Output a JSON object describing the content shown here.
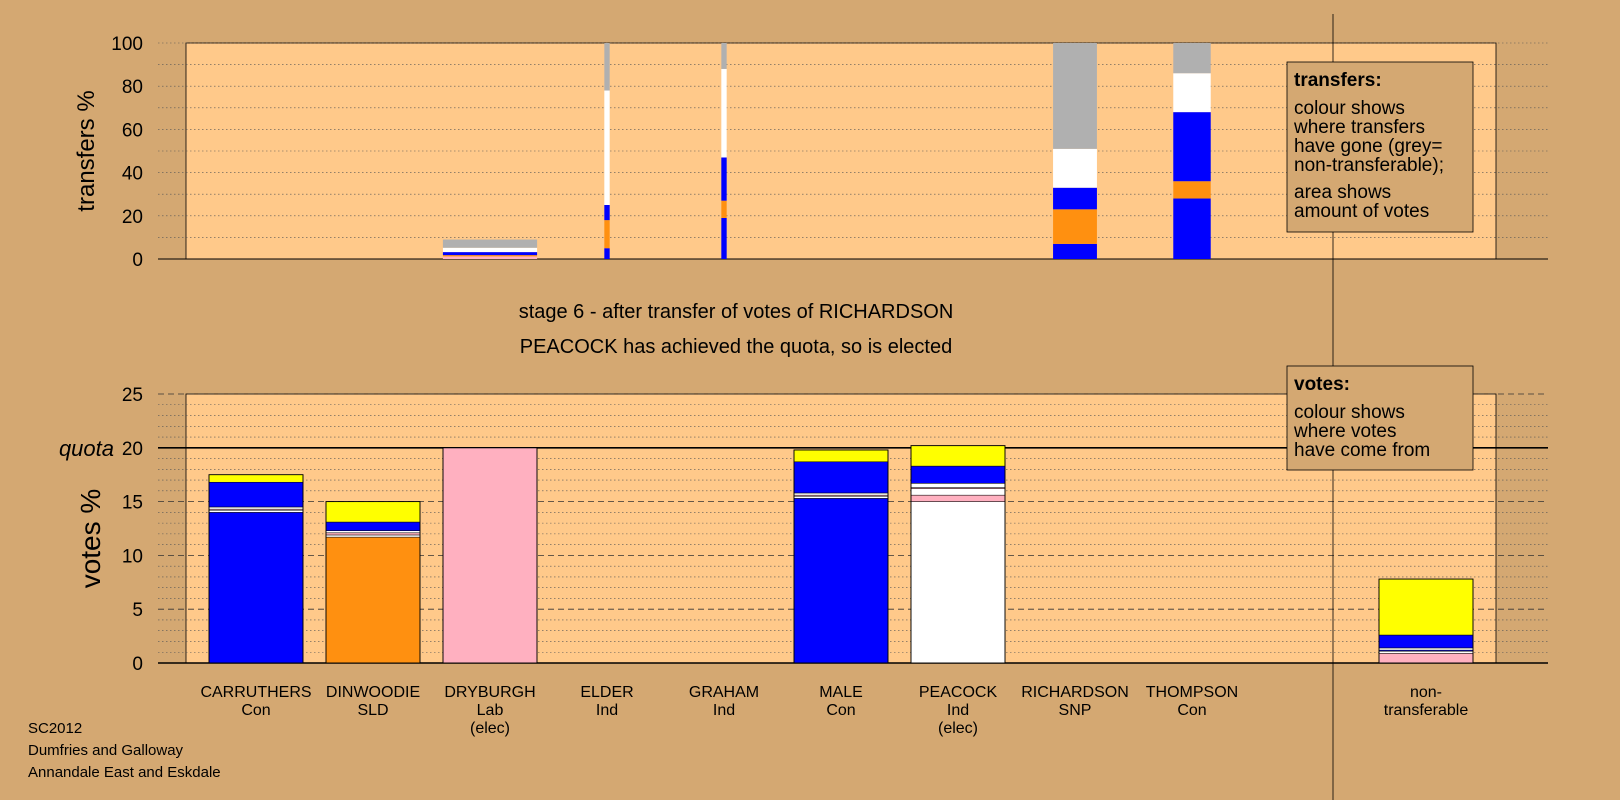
{
  "footer": {
    "line1": "SC2012",
    "line2": "Dumfries and Galloway",
    "line3": "Annandale East and Eskdale"
  },
  "colors": {
    "background": "#d4a872",
    "plot_area": "#ffc98a",
    "Con": "#0000ff",
    "SLD": "#ff9010",
    "Lab": "#ffb0c0",
    "Ind": "#ffffff",
    "SNP": "#ffff00",
    "non_transferable": "#b0b0b0"
  },
  "chart_data": [
    {
      "type": "bar",
      "stacked": true,
      "ylabel": "transfers %",
      "ylim": [
        0,
        100
      ],
      "yticks": [
        0,
        20,
        40,
        60,
        80,
        100
      ],
      "grid": true,
      "legend": {
        "title": "transfers:",
        "lines1": [
          "colour shows",
          "where transfers",
          "have gone (grey=",
          "non-transferable);"
        ],
        "lines2": [
          "area shows",
          "amount of votes"
        ],
        "placement": "top-right"
      },
      "bars": [
        {
          "candidate": "DRYBURGH",
          "width_votes": 0.88,
          "segments": [
            {
              "color": "Lab",
              "value": 1.2
            },
            {
              "color": "SLD",
              "value": 0.6
            },
            {
              "color": "Con",
              "value": 1.4
            },
            {
              "color": "Ind",
              "value": 2.0
            },
            {
              "color": "non_transferable",
              "value": 3.8
            }
          ]
        },
        {
          "candidate": "ELDER",
          "width_votes": 0.05,
          "segments": [
            {
              "color": "Con",
              "value": 5
            },
            {
              "color": "SLD",
              "value": 13
            },
            {
              "color": "Con",
              "value": 7
            },
            {
              "color": "Ind",
              "value": 53
            },
            {
              "color": "non_transferable",
              "value": 22
            }
          ]
        },
        {
          "candidate": "GRAHAM",
          "width_votes": 0.05,
          "segments": [
            {
              "color": "Con",
              "value": 19
            },
            {
              "color": "SLD",
              "value": 8
            },
            {
              "color": "Con",
              "value": 20
            },
            {
              "color": "Ind",
              "value": 41
            },
            {
              "color": "non_transferable",
              "value": 12
            }
          ]
        },
        {
          "candidate": "RICHARDSON",
          "width_votes": 0.41,
          "segments": [
            {
              "color": "Con",
              "value": 7
            },
            {
              "color": "SLD",
              "value": 16
            },
            {
              "color": "Con",
              "value": 10
            },
            {
              "color": "Ind",
              "value": 18
            },
            {
              "color": "non_transferable",
              "value": 49
            }
          ]
        },
        {
          "candidate": "THOMPSON",
          "width_votes": 0.35,
          "segments": [
            {
              "color": "Con",
              "value": 28
            },
            {
              "color": "SLD",
              "value": 8
            },
            {
              "color": "Con",
              "value": 32
            },
            {
              "color": "Ind",
              "value": 18
            },
            {
              "color": "non_transferable",
              "value": 14
            }
          ]
        }
      ]
    },
    {
      "type": "bar",
      "stacked": true,
      "ylabel": "votes %",
      "ylim": [
        0,
        25
      ],
      "yticks": [
        0,
        5,
        10,
        15,
        20,
        25
      ],
      "quota": 20,
      "quota_label": "quota",
      "grid": true,
      "legend": {
        "title": "votes:",
        "lines": [
          "colour shows",
          "where votes",
          "have come from"
        ],
        "placement": "top-right"
      },
      "stage_title": "stage 6 - after transfer of votes of RICHARDSON",
      "stage_subtitle": "PEACOCK has achieved the quota, so is elected",
      "categories": [
        {
          "name": "CARRUTHERS",
          "party": "Con",
          "note": ""
        },
        {
          "name": "DINWOODIE",
          "party": "SLD",
          "note": ""
        },
        {
          "name": "DRYBURGH",
          "party": "Lab",
          "note": "(elec)"
        },
        {
          "name": "ELDER",
          "party": "Ind",
          "note": ""
        },
        {
          "name": "GRAHAM",
          "party": "Ind",
          "note": ""
        },
        {
          "name": "MALE",
          "party": "Con",
          "note": ""
        },
        {
          "name": "PEACOCK",
          "party": "Ind",
          "note": "(elec)"
        },
        {
          "name": "RICHARDSON",
          "party": "SNP",
          "note": ""
        },
        {
          "name": "THOMPSON",
          "party": "Con",
          "note": ""
        }
      ],
      "nontransferable_label": [
        "non-",
        "transferable"
      ],
      "bars": [
        {
          "segments": [
            {
              "color": "Con",
              "value": 14.0
            },
            {
              "color": "Ind",
              "value": 0.2
            },
            {
              "color": "Lab",
              "value": 0.1
            },
            {
              "color": "Ind",
              "value": 0.2
            },
            {
              "color": "Con",
              "value": 2.3
            },
            {
              "color": "SNP",
              "value": 0.7
            }
          ]
        },
        {
          "segments": [
            {
              "color": "SLD",
              "value": 11.7
            },
            {
              "color": "Ind",
              "value": 0.2
            },
            {
              "color": "Lab",
              "value": 0.2
            },
            {
              "color": "Ind",
              "value": 0.2
            },
            {
              "color": "Con",
              "value": 0.8
            },
            {
              "color": "SNP",
              "value": 1.9
            }
          ]
        },
        {
          "segments": [
            {
              "color": "Lab",
              "value": 20.0
            }
          ]
        },
        {
          "segments": []
        },
        {
          "segments": []
        },
        {
          "segments": [
            {
              "color": "Con",
              "value": 15.3
            },
            {
              "color": "Ind",
              "value": 0.2
            },
            {
              "color": "Lab",
              "value": 0.1
            },
            {
              "color": "Ind",
              "value": 0.2
            },
            {
              "color": "Con",
              "value": 2.9
            },
            {
              "color": "SNP",
              "value": 1.1
            }
          ]
        },
        {
          "segments": [
            {
              "color": "Ind",
              "value": 15.0
            },
            {
              "color": "Lab",
              "value": 0.6
            },
            {
              "color": "Ind",
              "value": 0.6
            },
            {
              "color": "Lab",
              "value": 0.1
            },
            {
              "color": "Ind",
              "value": 0.4
            },
            {
              "color": "Con",
              "value": 1.6
            },
            {
              "color": "SNP",
              "value": 1.9
            }
          ]
        },
        {
          "segments": []
        },
        {
          "segments": []
        }
      ],
      "nontransferable": {
        "segments": [
          {
            "color": "Lab",
            "value": 0.9
          },
          {
            "color": "Ind",
            "value": 0.2
          },
          {
            "color": "Con",
            "value": 0.1
          },
          {
            "color": "Ind",
            "value": 0.2
          },
          {
            "color": "Con",
            "value": 1.2
          },
          {
            "color": "SNP",
            "value": 5.2
          }
        ]
      }
    }
  ]
}
